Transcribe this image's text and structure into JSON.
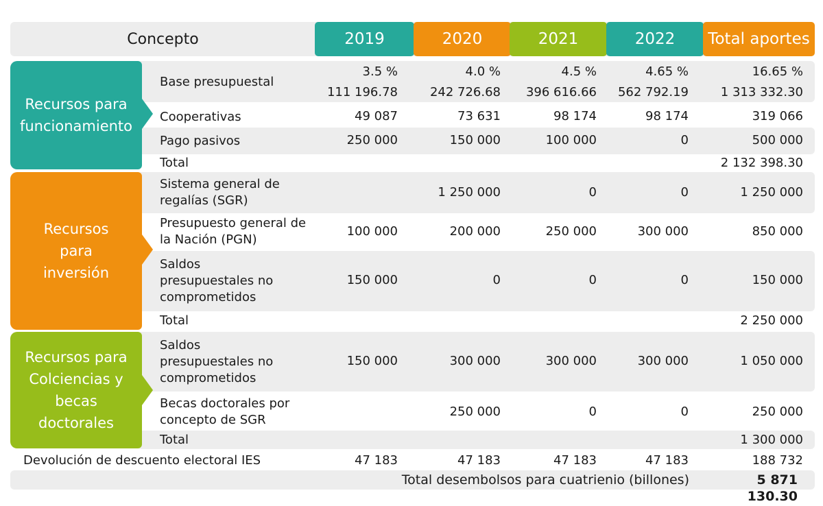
{
  "header": {
    "concept": "Concepto",
    "years": [
      "2019",
      "2020",
      "2021",
      "2022"
    ],
    "total": "Total aportes"
  },
  "sections": {
    "funcionamiento": {
      "title": "Recursos para funcionamiento",
      "rows": {
        "base": {
          "label": "Base presupuestal",
          "pct": [
            "3.5 %",
            "4.0 %",
            "4.5 %",
            "4.65 %",
            "16.65 %"
          ],
          "values": [
            "111 196.78",
            "242 726.68",
            "396 616.66",
            "562 792.19",
            "1 313 332.30"
          ]
        },
        "coop": {
          "label": "Cooperativas",
          "values": [
            "49 087",
            "73 631",
            "98 174",
            "98 174",
            "319 066"
          ]
        },
        "pasivos": {
          "label": "Pago pasivos",
          "values": [
            "250 000",
            "150 000",
            "100 000",
            "0",
            "500 000"
          ]
        },
        "total": {
          "label": "Total",
          "value": "2 132 398.30"
        }
      }
    },
    "inversion": {
      "title": "Recursos para inversión",
      "rows": {
        "sgr": {
          "label": "Sistema general de regalías (SGR)",
          "values": [
            "",
            "1 250 000",
            "0",
            "0",
            "1 250 000"
          ]
        },
        "pgn": {
          "label": "Presupuesto general de la Nación (PGN)",
          "values": [
            "100 000",
            "200 000",
            "250 000",
            "300 000",
            "850 000"
          ]
        },
        "saldos": {
          "label": "Saldos presupuestales no comprometidos",
          "values": [
            "150 000",
            "0",
            "0",
            "0",
            "150 000"
          ]
        },
        "total": {
          "label": "Total",
          "value": "2 250 000"
        }
      }
    },
    "colciencias": {
      "title": "Recursos para Colciencias y becas doctorales",
      "rows": {
        "saldos": {
          "label": "Saldos presupuestales no comprometidos",
          "values": [
            "150 000",
            "300 000",
            "300 000",
            "300 000",
            "1 050 000"
          ]
        },
        "becas": {
          "label": "Becas doctorales por concepto de SGR",
          "values": [
            "",
            "250 000",
            "0",
            "0",
            "250 000"
          ]
        },
        "total": {
          "label": "Total",
          "value": "1 300 000"
        }
      }
    }
  },
  "devolucion": {
    "label": "Devolución de descuento electoral IES",
    "values": [
      "47 183",
      "47 183",
      "47 183",
      "47 183",
      "188 732"
    ]
  },
  "grand_total": {
    "label": "Total desembolsos para cuatrienio (billones)",
    "value": "5 871 130.30"
  },
  "colors": {
    "teal": "#26a99a",
    "orange": "#f0900f",
    "green": "#97bd1b",
    "band": "#ededed"
  }
}
